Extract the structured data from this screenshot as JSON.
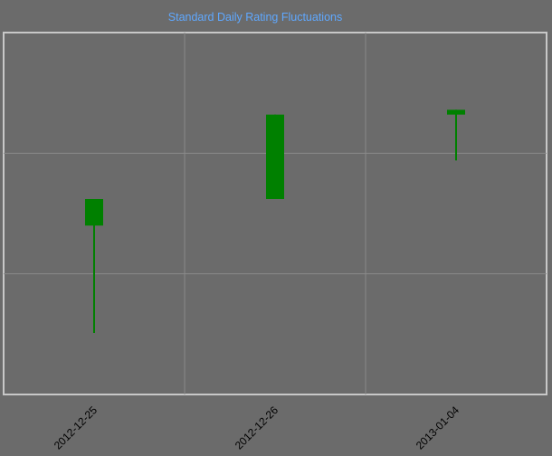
{
  "chart_data": {
    "type": "candlestick",
    "title": "Standard Daily Rating Fluctuations",
    "categories": [
      "2012-12-25",
      "2012-12-26",
      "2013-01-04"
    ],
    "series": [
      {
        "candles": [
          {
            "date": "2012-12-25",
            "open": 1.4,
            "close": 1.62,
            "high": 1.62,
            "low": 0.51
          },
          {
            "date": "2012-12-26",
            "open": 1.62,
            "close": 2.32,
            "high": 2.32,
            "low": 1.62
          },
          {
            "date": "2013-01-04",
            "open": 2.32,
            "close": 2.36,
            "high": 2.36,
            "low": 1.94
          }
        ]
      }
    ],
    "ylim": [
      0,
      3
    ],
    "grid": true,
    "colors": {
      "background": "#6b6b6b",
      "plot_border": "#c8c8c8",
      "grid": "#8a8a8a",
      "candle": "#008000",
      "title": "#5fa8ff",
      "tick_label": "#000000"
    }
  }
}
